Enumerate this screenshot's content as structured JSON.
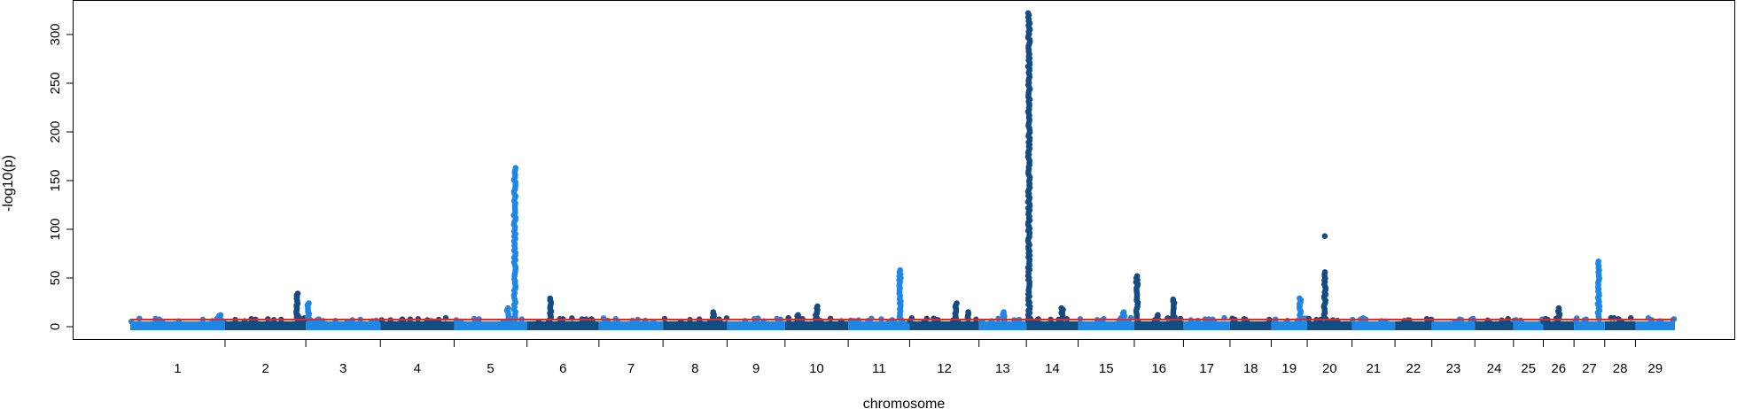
{
  "chart_data": {
    "type": "scatter",
    "subtype": "manhattan",
    "xlabel": "chromosome",
    "ylabel": "-log10(p)",
    "ylim": [
      0,
      330
    ],
    "yticks": [
      0,
      50,
      100,
      150,
      200,
      250,
      300
    ],
    "threshold": 7.3,
    "colors": {
      "odd": "#1f86e6",
      "even": "#134b82",
      "threshold": "#e8281e"
    },
    "chromosomes": [
      {
        "label": "1",
        "start": 0,
        "end": 108
      },
      {
        "label": "2",
        "start": 108,
        "end": 200
      },
      {
        "label": "3",
        "start": 200,
        "end": 285
      },
      {
        "label": "4",
        "start": 285,
        "end": 369
      },
      {
        "label": "5",
        "start": 369,
        "end": 452
      },
      {
        "label": "6",
        "start": 452,
        "end": 534
      },
      {
        "label": "7",
        "start": 534,
        "end": 607
      },
      {
        "label": "8",
        "start": 607,
        "end": 680
      },
      {
        "label": "9",
        "start": 680,
        "end": 746
      },
      {
        "label": "10",
        "start": 746,
        "end": 818
      },
      {
        "label": "11",
        "start": 818,
        "end": 888
      },
      {
        "label": "12",
        "start": 888,
        "end": 967
      },
      {
        "label": "13",
        "start": 967,
        "end": 1021
      },
      {
        "label": "14",
        "start": 1021,
        "end": 1080
      },
      {
        "label": "15",
        "start": 1080,
        "end": 1144
      },
      {
        "label": "16",
        "start": 1144,
        "end": 1200
      },
      {
        "label": "17",
        "start": 1200,
        "end": 1253
      },
      {
        "label": "18",
        "start": 1253,
        "end": 1300
      },
      {
        "label": "19",
        "start": 1300,
        "end": 1341
      },
      {
        "label": "20",
        "start": 1341,
        "end": 1392
      },
      {
        "label": "21",
        "start": 1392,
        "end": 1441
      },
      {
        "label": "22",
        "start": 1441,
        "end": 1483
      },
      {
        "label": "23",
        "start": 1483,
        "end": 1532
      },
      {
        "label": "24",
        "start": 1532,
        "end": 1576
      },
      {
        "label": "25",
        "start": 1576,
        "end": 1610
      },
      {
        "label": "26",
        "start": 1610,
        "end": 1645
      },
      {
        "label": "27",
        "start": 1645,
        "end": 1680
      },
      {
        "label": "28",
        "start": 1680,
        "end": 1715
      },
      {
        "label": "29",
        "start": 1715,
        "end": 1760
      }
    ],
    "peaks": [
      {
        "chr": "1",
        "pos": 102,
        "max": 12,
        "n": 6
      },
      {
        "chr": "2",
        "pos": 190,
        "max": 34,
        "n": 16
      },
      {
        "chr": "3",
        "pos": 203,
        "max": 24,
        "n": 10
      },
      {
        "chr": "5",
        "pos": 438,
        "max": 163,
        "n": 65
      },
      {
        "chr": "5",
        "pos": 430,
        "max": 19,
        "n": 6
      },
      {
        "chr": "6",
        "pos": 479,
        "max": 29,
        "n": 12
      },
      {
        "chr": "8",
        "pos": 664,
        "max": 15,
        "n": 6
      },
      {
        "chr": "10",
        "pos": 782,
        "max": 21,
        "n": 8
      },
      {
        "chr": "10",
        "pos": 761,
        "max": 12,
        "n": 5
      },
      {
        "chr": "11",
        "pos": 877,
        "max": 58,
        "n": 26
      },
      {
        "chr": "12",
        "pos": 941,
        "max": 24,
        "n": 10
      },
      {
        "chr": "12",
        "pos": 955,
        "max": 15,
        "n": 6
      },
      {
        "chr": "13",
        "pos": 995,
        "max": 15,
        "n": 6
      },
      {
        "chr": "14",
        "pos": 1024,
        "max": 322,
        "n": 150
      },
      {
        "chr": "14",
        "pos": 1062,
        "max": 19,
        "n": 8
      },
      {
        "chr": "15",
        "pos": 1132,
        "max": 15,
        "n": 6
      },
      {
        "chr": "16",
        "pos": 1147,
        "max": 52,
        "n": 22
      },
      {
        "chr": "16",
        "pos": 1189,
        "max": 28,
        "n": 12
      },
      {
        "chr": "16",
        "pos": 1170,
        "max": 12,
        "n": 5
      },
      {
        "chr": "19",
        "pos": 1333,
        "max": 29,
        "n": 12
      },
      {
        "chr": "20",
        "pos": 1361,
        "max": 56,
        "n": 24
      },
      {
        "chr": "20",
        "pos": 1361,
        "max": 93,
        "n": 1,
        "single": true
      },
      {
        "chr": "26",
        "pos": 1628,
        "max": 19,
        "n": 8
      },
      {
        "chr": "27",
        "pos": 1673,
        "max": 67,
        "n": 28
      }
    ]
  }
}
